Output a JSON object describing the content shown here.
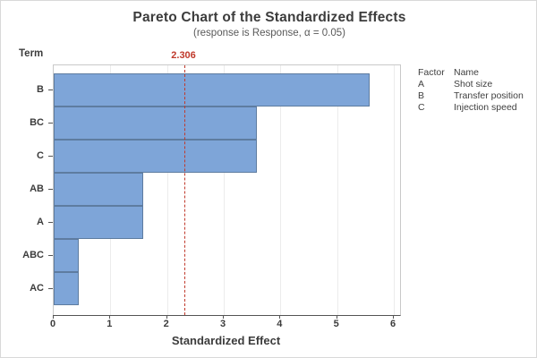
{
  "header": {
    "title": "Pareto Chart of the Standardized Effects",
    "subtitle": "(response is Response, α = 0.05)"
  },
  "chart_data": {
    "type": "bar",
    "orientation": "horizontal",
    "title": "Pareto Chart of the Standardized Effects",
    "subtitle": "(response is Response, α = 0.05)",
    "categories": [
      "B",
      "BC",
      "C",
      "AB",
      "A",
      "ABC",
      "AC"
    ],
    "values": [
      5.58,
      3.58,
      3.58,
      1.58,
      1.58,
      0.44,
      0.44
    ],
    "xlabel": "Standardized Effect",
    "ylabel": "Term",
    "xlim": [
      0,
      6.11
    ],
    "xticks": [
      0,
      1,
      2,
      3,
      4,
      5,
      6
    ],
    "grid": true,
    "reference_line": {
      "value": 2.306,
      "label": "2.306",
      "color": "#c0392b",
      "style": "dashed"
    },
    "bar_fill": "#7EA5D8",
    "bar_border": "#5E7CA0",
    "legend": {
      "position": "right",
      "headers": [
        "Factor",
        "Name"
      ],
      "rows": [
        [
          "A",
          "Shot size"
        ],
        [
          "B",
          "Transfer position"
        ],
        [
          "C",
          "Injection speed"
        ]
      ]
    }
  }
}
